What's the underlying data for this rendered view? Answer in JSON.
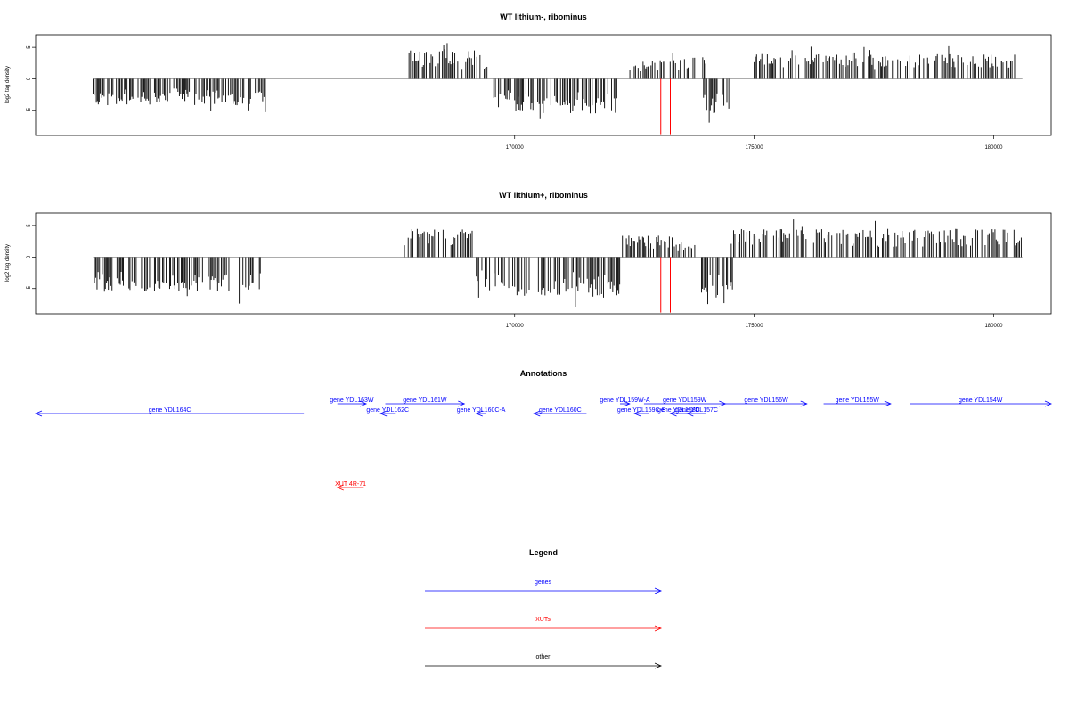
{
  "colors": {
    "track": "#000000",
    "marker": "#ff0000",
    "gene": "#0000ff",
    "xut": "#ff0000",
    "other": "#000000",
    "baseline": "#a0a0a0"
  },
  "chart_data": [
    {
      "type": "bar",
      "title": "WT lithium-, ribominus",
      "ylabel": "log2 tag density",
      "xlim": [
        160000,
        181200
      ],
      "ylim": [
        -9,
        7
      ],
      "x_ticks": [
        170000,
        175000,
        180000
      ],
      "y_ticks": [
        -5,
        0,
        5
      ],
      "markers": [
        173050,
        173250
      ],
      "profile": [
        {
          "x": [
            161200,
            164800
          ],
          "sign": -1,
          "amp": 4.2
        },
        {
          "x": [
            167700,
            169500
          ],
          "sign": 1,
          "amp": 4.5
        },
        {
          "x": [
            169500,
            170000
          ],
          "sign": -1,
          "amp": 3.5
        },
        {
          "x": [
            170000,
            172150
          ],
          "sign": -1,
          "amp": 5.5
        },
        {
          "x": [
            172250,
            173250
          ],
          "sign": 1,
          "amp": 3.2
        },
        {
          "x": [
            173300,
            174000
          ],
          "sign": 1,
          "amp": 3.5
        },
        {
          "x": [
            173900,
            174500
          ],
          "sign": -1,
          "amp": 6.0
        },
        {
          "x": [
            175000,
            180500
          ],
          "sign": 1,
          "amp": 4.0
        }
      ]
    },
    {
      "type": "bar",
      "title": "WT lithium+, ribominus",
      "ylabel": "log2 tag density",
      "xlim": [
        160000,
        181200
      ],
      "ylim": [
        -9,
        7
      ],
      "x_ticks": [
        170000,
        175000,
        180000
      ],
      "y_ticks": [
        -5,
        0,
        5
      ],
      "markers": [
        173050,
        173250
      ],
      "profile": [
        {
          "x": [
            161200,
            164800
          ],
          "sign": -1,
          "amp": 5.5
        },
        {
          "x": [
            167700,
            169200
          ],
          "sign": 1,
          "amp": 4.5
        },
        {
          "x": [
            169200,
            170000
          ],
          "sign": -1,
          "amp": 5.0
        },
        {
          "x": [
            170000,
            172200
          ],
          "sign": -1,
          "amp": 6.5
        },
        {
          "x": [
            172250,
            173300
          ],
          "sign": 1,
          "amp": 3.5
        },
        {
          "x": [
            173300,
            173900
          ],
          "sign": 1,
          "amp": 2.5
        },
        {
          "x": [
            173900,
            174550
          ],
          "sign": -1,
          "amp": 6.5
        },
        {
          "x": [
            174500,
            180600
          ],
          "sign": 1,
          "amp": 4.5
        }
      ]
    }
  ],
  "annotations": {
    "title": "Annotations",
    "genes": [
      {
        "label": "gene YDL164C",
        "start": 165600,
        "end": 160000,
        "row": 1,
        "type": "gene"
      },
      {
        "label": "gene YDL163W",
        "start": 166300,
        "end": 166900,
        "row": 0,
        "type": "gene"
      },
      {
        "label": "gene YDL162C",
        "start": 167500,
        "end": 167200,
        "row": 1,
        "type": "gene"
      },
      {
        "label": "gene YDL161W",
        "start": 167300,
        "end": 168950,
        "row": 0,
        "type": "gene"
      },
      {
        "label": "gene YDL160C-A",
        "start": 169400,
        "end": 169200,
        "row": 1,
        "type": "gene"
      },
      {
        "label": "gene YDL160C",
        "start": 171500,
        "end": 170400,
        "row": 1,
        "type": "gene"
      },
      {
        "label": "gene YDL159W-A",
        "start": 172200,
        "end": 172400,
        "row": 0,
        "type": "gene"
      },
      {
        "label": "gene YDL159W",
        "start": 172700,
        "end": 174400,
        "row": 0,
        "type": "gene"
      },
      {
        "label": "gene YDL159C-B",
        "start": 172800,
        "end": 172500,
        "row": 1,
        "type": "gene"
      },
      {
        "label": "gene YDL158C",
        "start": 173600,
        "end": 173250,
        "row": 1,
        "type": "gene"
      },
      {
        "label": "gene YDL157C",
        "start": 174000,
        "end": 173600,
        "row": 1,
        "type": "gene"
      },
      {
        "label": "gene YDL156W",
        "start": 174400,
        "end": 176100,
        "row": 0,
        "type": "gene"
      },
      {
        "label": "gene YDL155W",
        "start": 176450,
        "end": 177850,
        "row": 0,
        "type": "gene"
      },
      {
        "label": "gene YDL154W",
        "start": 178250,
        "end": 181200,
        "row": 0,
        "type": "gene"
      },
      {
        "label": "XUT 4R-71",
        "start": 166850,
        "end": 166300,
        "row": 2,
        "type": "xut"
      }
    ]
  },
  "legend": {
    "title": "Legend",
    "items": [
      {
        "label": "genes",
        "type": "gene"
      },
      {
        "label": "XUTs",
        "type": "xut"
      },
      {
        "label": "other",
        "type": "other"
      }
    ]
  }
}
